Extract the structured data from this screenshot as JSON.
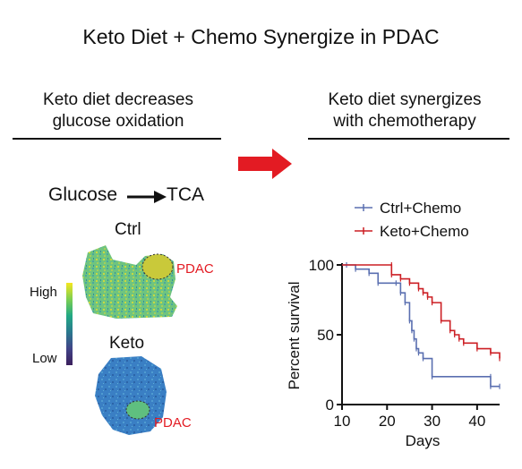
{
  "title": "Keto Diet + Chemo Synergize in PDAC",
  "left_panel": {
    "heading_line1": "Keto diet decreases",
    "heading_line2": "glucose oxidation",
    "glucose": "Glucose",
    "tca": "TCA",
    "ctrl_label": "Ctrl",
    "keto_label": "Keto",
    "pdac_label": "PDAC",
    "scale_high": "High",
    "scale_low": "Low"
  },
  "right_panel": {
    "heading_line1": "Keto diet synergizes",
    "heading_line2": "with chemotherapy"
  },
  "colors": {
    "arrow": "#e31b23",
    "ctrl_chemo": "#5a6fb0",
    "keto_chemo": "#cc1f24",
    "pdac_text": "#e31b23"
  },
  "chart_data": {
    "type": "line",
    "subtype": "kaplan-meier survival curve",
    "xlabel": "Days",
    "ylabel": "Percent survival",
    "xlim": [
      10,
      45
    ],
    "ylim": [
      0,
      100
    ],
    "x_ticks": [
      10,
      20,
      30,
      40
    ],
    "y_ticks": [
      0,
      50,
      100
    ],
    "legend_placement": "top",
    "series": [
      {
        "name": "Ctrl+Chemo",
        "color": "#5a6fb0",
        "points": [
          [
            10,
            100
          ],
          [
            11,
            100
          ],
          [
            13,
            97
          ],
          [
            16,
            94
          ],
          [
            18,
            87
          ],
          [
            22,
            87
          ],
          [
            23,
            80
          ],
          [
            24,
            73
          ],
          [
            25,
            60
          ],
          [
            25.5,
            53
          ],
          [
            26,
            47
          ],
          [
            26.5,
            40
          ],
          [
            27,
            37
          ],
          [
            28,
            33
          ],
          [
            30,
            20
          ],
          [
            43,
            20
          ],
          [
            43,
            13
          ],
          [
            45,
            13
          ]
        ]
      },
      {
        "name": "Keto+Chemo",
        "color": "#cc1f24",
        "points": [
          [
            10,
            100
          ],
          [
            21,
            100
          ],
          [
            21,
            93
          ],
          [
            23,
            90
          ],
          [
            25,
            87
          ],
          [
            27,
            83
          ],
          [
            28,
            80
          ],
          [
            29,
            77
          ],
          [
            30,
            73
          ],
          [
            32,
            60
          ],
          [
            34,
            53
          ],
          [
            35,
            50
          ],
          [
            36,
            47
          ],
          [
            37,
            44
          ],
          [
            40,
            40
          ],
          [
            43,
            37
          ],
          [
            45,
            33
          ]
        ]
      }
    ]
  }
}
